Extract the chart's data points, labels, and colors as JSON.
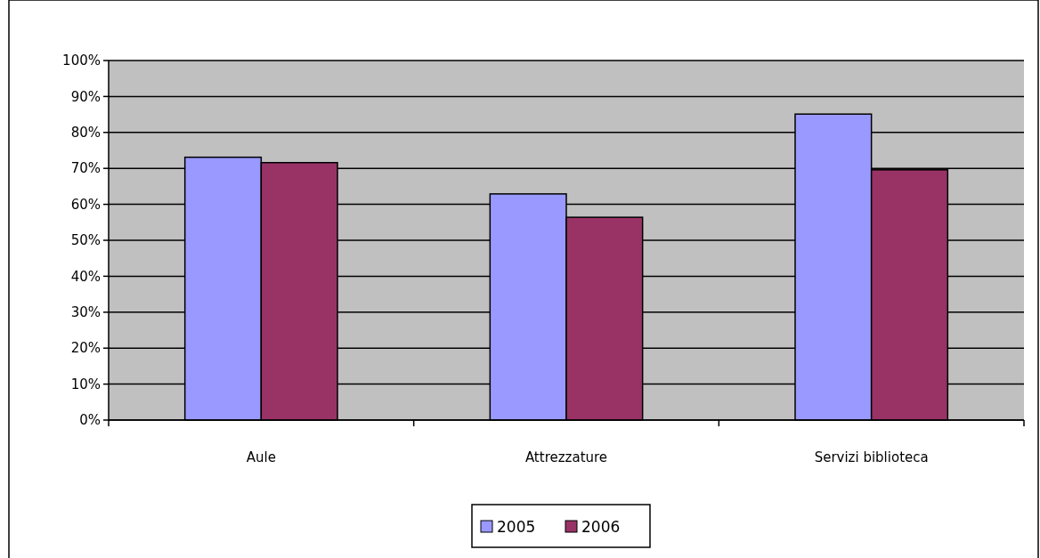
{
  "chart_data": {
    "type": "bar",
    "categories": [
      "Aule",
      "Attrezzature",
      "Servizi biblioteca"
    ],
    "series": [
      {
        "name": "2005",
        "color": "#9999ff",
        "values": [
          73.1,
          62.9,
          85.1
        ]
      },
      {
        "name": "2006",
        "color": "#993366",
        "values": [
          71.6,
          56.4,
          69.6
        ]
      }
    ],
    "ylim": [
      0,
      100
    ],
    "yticks": [
      {
        "value": 0,
        "label": "0%"
      },
      {
        "value": 10,
        "label": "10%"
      },
      {
        "value": 20,
        "label": "20%"
      },
      {
        "value": 30,
        "label": "30%"
      },
      {
        "value": 40,
        "label": "40%"
      },
      {
        "value": 50,
        "label": "50%"
      },
      {
        "value": 60,
        "label": "60%"
      },
      {
        "value": 70,
        "label": "70%"
      },
      {
        "value": 80,
        "label": "80%"
      },
      {
        "value": 90,
        "label": "90%"
      },
      {
        "value": 100,
        "label": "100%"
      }
    ],
    "grid": "y",
    "legend": "bottom"
  }
}
